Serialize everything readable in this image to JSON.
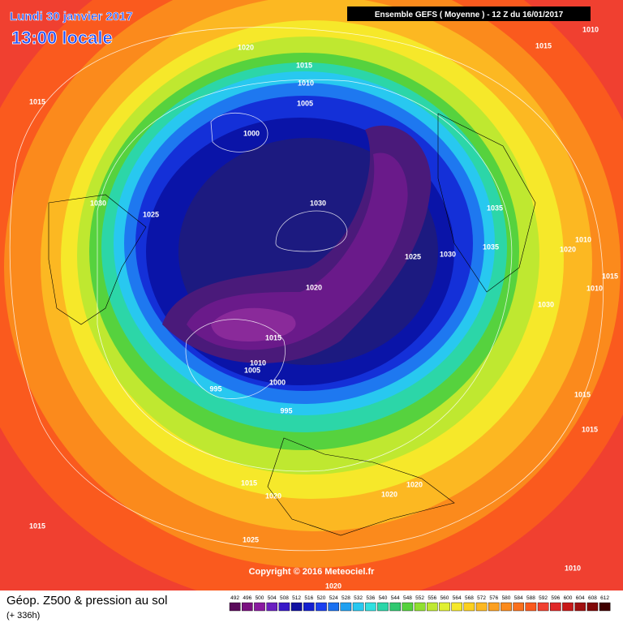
{
  "header": {
    "date": "Lundi 30 janvier 2017",
    "time": "13:00 locale",
    "run": "Ensemble GEFS  ( Moyenne )  -  12 Z du 16/01/2017"
  },
  "isobar_labels": [
    1010,
    1015,
    1020,
    1015,
    1010,
    1005,
    1015,
    1000,
    1030,
    1025,
    1030,
    1035,
    1010,
    1035,
    1020,
    1025,
    1030,
    1015,
    1010,
    1020,
    1030,
    1015,
    1010,
    1005,
    1000,
    995,
    1015,
    995,
    1015,
    1015,
    1020,
    1020,
    1020,
    1015,
    1025,
    1010,
    1020
  ],
  "copyright": "Copyright © 2016 Meteociel.fr",
  "footer": {
    "title": "Géop. Z500 & pression au sol",
    "lead": "(+ 336h)"
  },
  "scale": [
    492,
    496,
    500,
    504,
    508,
    512,
    516,
    520,
    524,
    528,
    532,
    536,
    540,
    544,
    548,
    552,
    556,
    560,
    564,
    568,
    572,
    576,
    580,
    584,
    588,
    592,
    596,
    600,
    604,
    608,
    612
  ]
}
